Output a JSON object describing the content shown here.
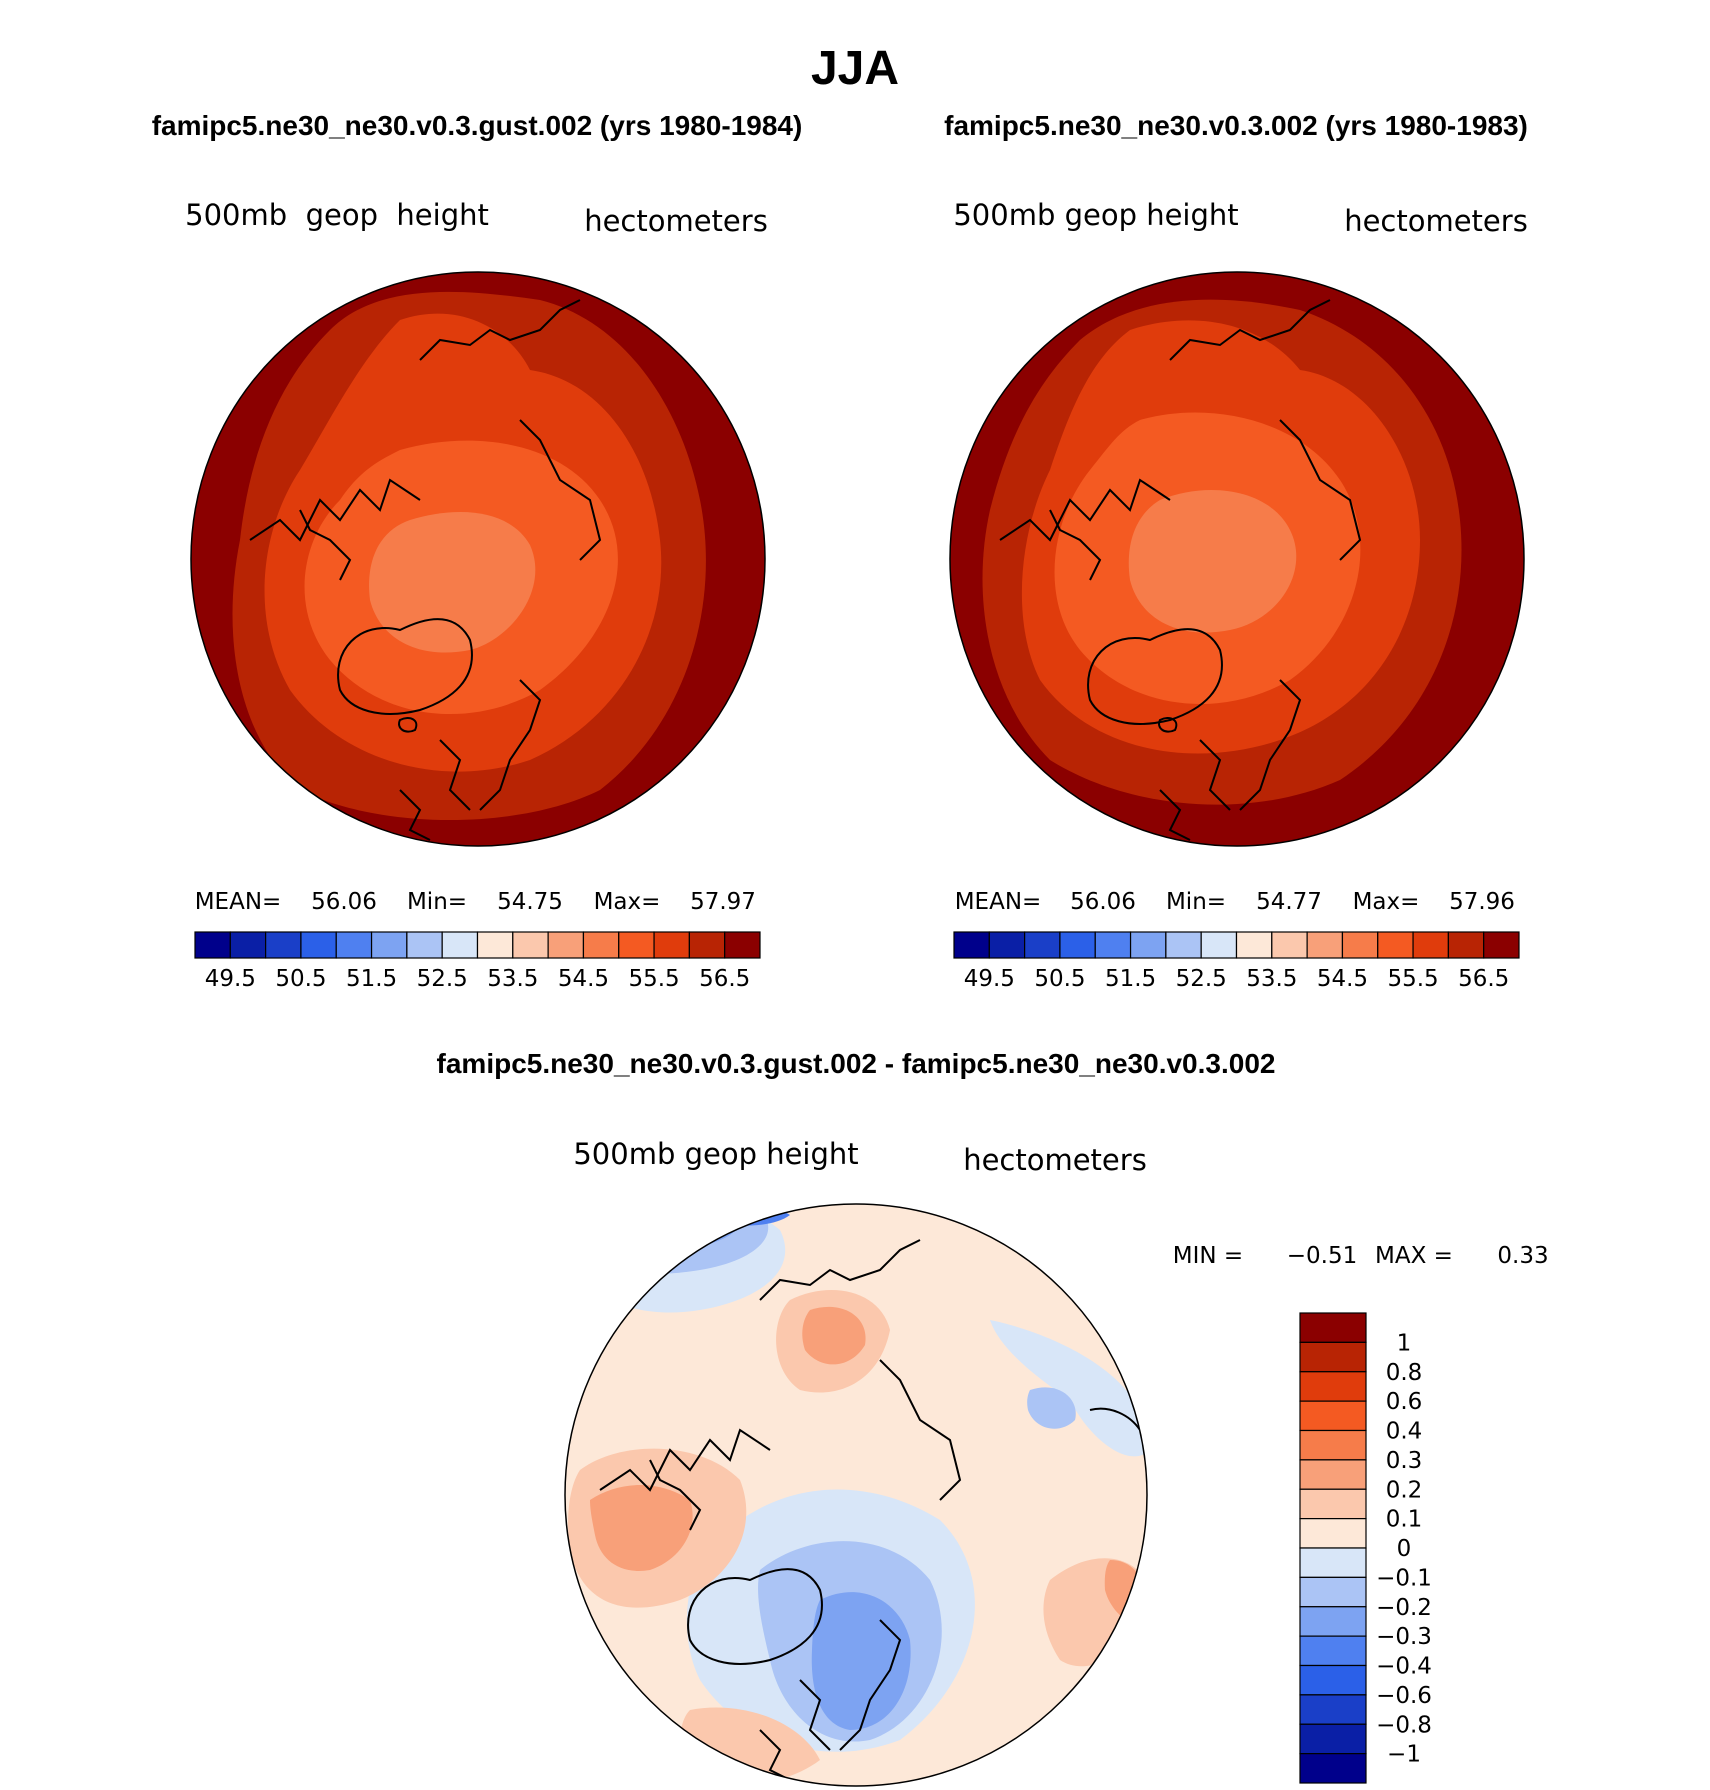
{
  "chart_data": [
    {
      "type": "heatmap",
      "panel": "gust",
      "title": "famipc5.ne30_ne30.v0.3.gust.002 (yrs 1980-1984)",
      "variable": "500mb  geop  height",
      "units": "hectometers",
      "stats": {
        "mean_label": "MEAN=",
        "mean": "56.06",
        "min_label": "Min=",
        "min": "54.75",
        "max_label": "Max=",
        "max": "57.97"
      },
      "levels": [
        49.5,
        50.0,
        50.5,
        51.0,
        51.5,
        52.0,
        52.5,
        53.0,
        53.5,
        54.0,
        54.5,
        55.0,
        55.5,
        56.0,
        56.5
      ],
      "tick_labels": [
        "49.5",
        "50.5",
        "51.5",
        "52.5",
        "53.5",
        "54.5",
        "55.5",
        "56.5"
      ],
      "projection": "north polar stereographic"
    },
    {
      "type": "heatmap",
      "panel": "control",
      "title": "famipc5.ne30_ne30.v0.3.002 (yrs 1980-1983)",
      "variable": "500mb  geop  height",
      "units": "hectometers",
      "stats": {
        "mean_label": "MEAN=",
        "mean": "56.06",
        "min_label": "Min=",
        "min": "54.77",
        "max_label": "Max=",
        "max": "57.96"
      },
      "levels": [
        49.5,
        50.0,
        50.5,
        51.0,
        51.5,
        52.0,
        52.5,
        53.0,
        53.5,
        54.0,
        54.5,
        55.0,
        55.5,
        56.0,
        56.5
      ],
      "tick_labels": [
        "49.5",
        "50.5",
        "51.5",
        "52.5",
        "53.5",
        "54.5",
        "55.5",
        "56.5"
      ],
      "projection": "north polar stereographic"
    },
    {
      "type": "heatmap",
      "panel": "difference",
      "title": "famipc5.ne30_ne30.v0.3.gust.002 - famipc5.ne30_ne30.v0.3.002",
      "variable": "500mb  geop  height",
      "units": "hectometers",
      "stats": {
        "min_label": "MIN =",
        "min": "−0.51",
        "max_label": "MAX =",
        "max": "0.33"
      },
      "levels": [
        -1,
        -0.8,
        -0.6,
        -0.4,
        -0.3,
        -0.2,
        -0.1,
        0,
        0.1,
        0.2,
        0.3,
        0.4,
        0.6,
        0.8,
        1
      ],
      "tick_labels": [
        "1",
        "0.8",
        "0.6",
        "0.4",
        "0.3",
        "0.2",
        "0.1",
        "0",
        "−0.1",
        "−0.2",
        "−0.3",
        "−0.4",
        "−0.6",
        "−0.8",
        "−1"
      ],
      "projection": "north polar stereographic"
    }
  ],
  "figure": {
    "season": "JJA"
  },
  "colors": {
    "abs_scale": [
      "#00008b",
      "#0a1fa6",
      "#1a3fc8",
      "#2b60e8",
      "#4f80f0",
      "#7da3f2",
      "#abc4f5",
      "#d8e6f8",
      "#fde8d8",
      "#fbc8ad",
      "#f8a079",
      "#f67c4a",
      "#f45a22",
      "#e03c0c",
      "#b82404",
      "#8b0000"
    ],
    "diff_scale": [
      "#8b0000",
      "#b82404",
      "#e03c0c",
      "#f45a22",
      "#f67c4a",
      "#f8a079",
      "#fbc8ad",
      "#fde8d8",
      "#d8e6f8",
      "#abc4f5",
      "#7da3f2",
      "#4f80f0",
      "#2b60e8",
      "#1a3fc8",
      "#0a1fa6",
      "#00008b"
    ]
  }
}
